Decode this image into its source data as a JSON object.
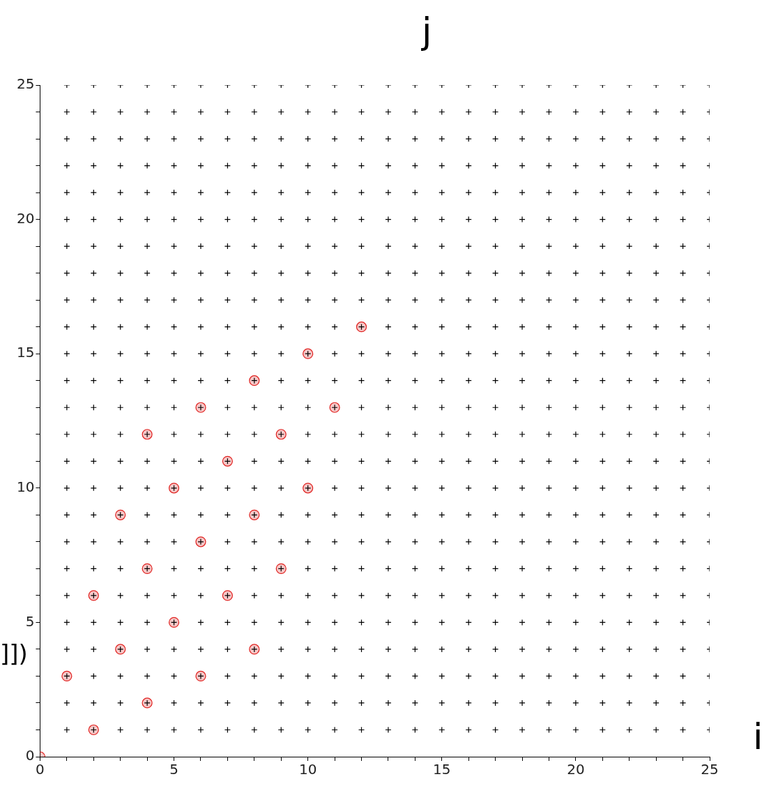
{
  "chart_data": {
    "type": "scatter",
    "xlabel": "i",
    "ylabel": "j",
    "annotations": [
      "]])"
    ],
    "xlim": [
      0,
      25
    ],
    "ylim": [
      0,
      25
    ],
    "xticks": [
      0,
      {
        "value": 1,
        "label": null
      },
      {
        "value": 2,
        "label": null
      },
      {
        "value": 3,
        "label": null
      },
      {
        "value": 4,
        "label": null
      },
      5,
      {
        "value": 6,
        "label": null
      },
      {
        "value": 7,
        "label": null
      },
      {
        "value": 8,
        "label": null
      },
      {
        "value": 9,
        "label": null
      },
      10,
      {
        "value": 11,
        "label": null
      },
      {
        "value": 12,
        "label": null
      },
      {
        "value": 13,
        "label": null
      },
      {
        "value": 14,
        "label": null
      },
      15,
      {
        "value": 16,
        "label": null
      },
      {
        "value": 17,
        "label": null
      },
      {
        "value": 18,
        "label": null
      },
      {
        "value": 19,
        "label": null
      },
      20,
      {
        "value": 21,
        "label": null
      },
      {
        "value": 22,
        "label": null
      },
      {
        "value": 23,
        "label": null
      },
      {
        "value": 24,
        "label": null
      },
      25
    ],
    "yticks": [
      0,
      {
        "value": 1,
        "label": null
      },
      {
        "value": 2,
        "label": null
      },
      {
        "value": 3,
        "label": null
      },
      {
        "value": 4,
        "label": null
      },
      5,
      {
        "value": 6,
        "label": null
      },
      {
        "value": 7,
        "label": null
      },
      {
        "value": 8,
        "label": null
      },
      {
        "value": 9,
        "label": null
      },
      10,
      {
        "value": 11,
        "label": null
      },
      {
        "value": 12,
        "label": null
      },
      {
        "value": 13,
        "label": null
      },
      {
        "value": 14,
        "label": null
      },
      15,
      {
        "value": 16,
        "label": null
      },
      {
        "value": 17,
        "label": null
      },
      {
        "value": 18,
        "label": null
      },
      {
        "value": 19,
        "label": null
      },
      20,
      {
        "value": 21,
        "label": null
      },
      {
        "value": 22,
        "label": null
      },
      {
        "value": 23,
        "label": null
      },
      {
        "value": 24,
        "label": null
      },
      25
    ],
    "series": [
      {
        "color": "#000000",
        "marker": "cross",
        "x": [
          1,
          2,
          3,
          4,
          5,
          6,
          7,
          8,
          9,
          10,
          11,
          12,
          13,
          14,
          15,
          16,
          17,
          18,
          19,
          20,
          21,
          22,
          23,
          24,
          25,
          1,
          2,
          3,
          4,
          5,
          6,
          7,
          8,
          9,
          10,
          11,
          12,
          13,
          14,
          15,
          16,
          17,
          18,
          19,
          20,
          21,
          22,
          23,
          24,
          25,
          1,
          2,
          3,
          4,
          5,
          6,
          7,
          8,
          9,
          10,
          11,
          12,
          13,
          14,
          15,
          16,
          17,
          18,
          19,
          20,
          21,
          22,
          23,
          24,
          25,
          1,
          2,
          3,
          4,
          5,
          6,
          7,
          8,
          9,
          10,
          11,
          12,
          13,
          14,
          15,
          16,
          17,
          18,
          19,
          20,
          21,
          22,
          23,
          24,
          25,
          1,
          2,
          3,
          4,
          5,
          6,
          7,
          8,
          9,
          10,
          11,
          12,
          13,
          14,
          15,
          16,
          17,
          18,
          19,
          20,
          21,
          22,
          23,
          24,
          25,
          1,
          2,
          3,
          4,
          5,
          6,
          7,
          8,
          9,
          10,
          11,
          12,
          13,
          14,
          15,
          16,
          17,
          18,
          19,
          20,
          21,
          22,
          23,
          24,
          25,
          1,
          2,
          3,
          4,
          5,
          6,
          7,
          8,
          9,
          10,
          11,
          12,
          13,
          14,
          15,
          16,
          17,
          18,
          19,
          20,
          21,
          22,
          23,
          24,
          25,
          1,
          2,
          3,
          4,
          5,
          6,
          7,
          8,
          9,
          10,
          11,
          12,
          13,
          14,
          15,
          16,
          17,
          18,
          19,
          20,
          21,
          22,
          23,
          24,
          25,
          1,
          2,
          3,
          4,
          5,
          6,
          7,
          8,
          9,
          10,
          11,
          12,
          13,
          14,
          15,
          16,
          17,
          18,
          19,
          20,
          21,
          22,
          23,
          24,
          25,
          1,
          2,
          3,
          4,
          5,
          6,
          7,
          8,
          9,
          10,
          11,
          12,
          13,
          14,
          15,
          16,
          17,
          18,
          19,
          20,
          21,
          22,
          23,
          24,
          25,
          1,
          2,
          3,
          4,
          5,
          6,
          7,
          8,
          9,
          10,
          11,
          12,
          13,
          14,
          15,
          16,
          17,
          18,
          19,
          20,
          21,
          22,
          23,
          24,
          25,
          1,
          2,
          3,
          4,
          5,
          6,
          7,
          8,
          9,
          10,
          11,
          12,
          13,
          14,
          15,
          16,
          17,
          18,
          19,
          20,
          21,
          22,
          23,
          24,
          25,
          1,
          2,
          3,
          4,
          5,
          6,
          7,
          8,
          9,
          10,
          11,
          12,
          13,
          14,
          15,
          16,
          17,
          18,
          19,
          20,
          21,
          22,
          23,
          24,
          25,
          1,
          2,
          3,
          4,
          5,
          6,
          7,
          8,
          9,
          10,
          11,
          12,
          13,
          14,
          15,
          16,
          17,
          18,
          19,
          20,
          21,
          22,
          23,
          24,
          25,
          1,
          2,
          3,
          4,
          5,
          6,
          7,
          8,
          9,
          10,
          11,
          12,
          13,
          14,
          15,
          16,
          17,
          18,
          19,
          20,
          21,
          22,
          23,
          24,
          25,
          1,
          2,
          3,
          4,
          5,
          6,
          7,
          8,
          9,
          10,
          11,
          12,
          13,
          14,
          15,
          16,
          17,
          18,
          19,
          20,
          21,
          22,
          23,
          24,
          25,
          1,
          2,
          3,
          4,
          5,
          6,
          7,
          8,
          9,
          10,
          11,
          12,
          13,
          14,
          15,
          16,
          17,
          18,
          19,
          20,
          21,
          22,
          23,
          24,
          25,
          1,
          2,
          3,
          4,
          5,
          6,
          7,
          8,
          9,
          10,
          11,
          12,
          13,
          14,
          15,
          16,
          17,
          18,
          19,
          20,
          21,
          22,
          23,
          24,
          25,
          1,
          2,
          3,
          4,
          5,
          6,
          7,
          8,
          9,
          10,
          11,
          12,
          13,
          14,
          15,
          16,
          17,
          18,
          19,
          20,
          21,
          22,
          23,
          24,
          25,
          1,
          2,
          3,
          4,
          5,
          6,
          7,
          8,
          9,
          10,
          11,
          12,
          13,
          14,
          15,
          16,
          17,
          18,
          19,
          20,
          21,
          22,
          23,
          24,
          25,
          1,
          2,
          3,
          4,
          5,
          6,
          7,
          8,
          9,
          10,
          11,
          12,
          13,
          14,
          15,
          16,
          17,
          18,
          19,
          20,
          21,
          22,
          23,
          24,
          25,
          1,
          2,
          3,
          4,
          5,
          6,
          7,
          8,
          9,
          10,
          11,
          12,
          13,
          14,
          15,
          16,
          17,
          18,
          19,
          20,
          21,
          22,
          23,
          24,
          25,
          1,
          2,
          3,
          4,
          5,
          6,
          7,
          8,
          9,
          10,
          11,
          12,
          13,
          14,
          15,
          16,
          17,
          18,
          19,
          20,
          21,
          22,
          23,
          24,
          25,
          1,
          2,
          3,
          4,
          5,
          6,
          7,
          8,
          9,
          10,
          11,
          12,
          13,
          14,
          15,
          16,
          17,
          18,
          19,
          20,
          21,
          22,
          23,
          24,
          25,
          1,
          2,
          3,
          4,
          5,
          6,
          7,
          8,
          9,
          10,
          11,
          12,
          13,
          14,
          15,
          16,
          17,
          18,
          19,
          20,
          21,
          22,
          23,
          24,
          25
        ],
        "values": [
          1,
          1,
          1,
          1,
          1,
          1,
          1,
          1,
          1,
          1,
          1,
          1,
          1,
          1,
          1,
          1,
          1,
          1,
          1,
          1,
          1,
          1,
          1,
          1,
          1,
          2,
          2,
          2,
          2,
          2,
          2,
          2,
          2,
          2,
          2,
          2,
          2,
          2,
          2,
          2,
          2,
          2,
          2,
          2,
          2,
          2,
          2,
          2,
          2,
          2,
          3,
          3,
          3,
          3,
          3,
          3,
          3,
          3,
          3,
          3,
          3,
          3,
          3,
          3,
          3,
          3,
          3,
          3,
          3,
          3,
          3,
          3,
          3,
          3,
          3,
          4,
          4,
          4,
          4,
          4,
          4,
          4,
          4,
          4,
          4,
          4,
          4,
          4,
          4,
          4,
          4,
          4,
          4,
          4,
          4,
          4,
          4,
          4,
          4,
          4,
          5,
          5,
          5,
          5,
          5,
          5,
          5,
          5,
          5,
          5,
          5,
          5,
          5,
          5,
          5,
          5,
          5,
          5,
          5,
          5,
          5,
          5,
          5,
          5,
          5,
          6,
          6,
          6,
          6,
          6,
          6,
          6,
          6,
          6,
          6,
          6,
          6,
          6,
          6,
          6,
          6,
          6,
          6,
          6,
          6,
          6,
          6,
          6,
          6,
          6,
          7,
          7,
          7,
          7,
          7,
          7,
          7,
          7,
          7,
          7,
          7,
          7,
          7,
          7,
          7,
          7,
          7,
          7,
          7,
          7,
          7,
          7,
          7,
          7,
          7,
          8,
          8,
          8,
          8,
          8,
          8,
          8,
          8,
          8,
          8,
          8,
          8,
          8,
          8,
          8,
          8,
          8,
          8,
          8,
          8,
          8,
          8,
          8,
          8,
          8,
          9,
          9,
          9,
          9,
          9,
          9,
          9,
          9,
          9,
          9,
          9,
          9,
          9,
          9,
          9,
          9,
          9,
          9,
          9,
          9,
          9,
          9,
          9,
          9,
          9,
          10,
          10,
          10,
          10,
          10,
          10,
          10,
          10,
          10,
          10,
          10,
          10,
          10,
          10,
          10,
          10,
          10,
          10,
          10,
          10,
          10,
          10,
          10,
          10,
          10,
          11,
          11,
          11,
          11,
          11,
          11,
          11,
          11,
          11,
          11,
          11,
          11,
          11,
          11,
          11,
          11,
          11,
          11,
          11,
          11,
          11,
          11,
          11,
          11,
          11,
          12,
          12,
          12,
          12,
          12,
          12,
          12,
          12,
          12,
          12,
          12,
          12,
          12,
          12,
          12,
          12,
          12,
          12,
          12,
          12,
          12,
          12,
          12,
          12,
          12,
          13,
          13,
          13,
          13,
          13,
          13,
          13,
          13,
          13,
          13,
          13,
          13,
          13,
          13,
          13,
          13,
          13,
          13,
          13,
          13,
          13,
          13,
          13,
          13,
          13,
          14,
          14,
          14,
          14,
          14,
          14,
          14,
          14,
          14,
          14,
          14,
          14,
          14,
          14,
          14,
          14,
          14,
          14,
          14,
          14,
          14,
          14,
          14,
          14,
          14,
          15,
          15,
          15,
          15,
          15,
          15,
          15,
          15,
          15,
          15,
          15,
          15,
          15,
          15,
          15,
          15,
          15,
          15,
          15,
          15,
          15,
          15,
          15,
          15,
          15,
          16,
          16,
          16,
          16,
          16,
          16,
          16,
          16,
          16,
          16,
          16,
          16,
          16,
          16,
          16,
          16,
          16,
          16,
          16,
          16,
          16,
          16,
          16,
          16,
          16,
          17,
          17,
          17,
          17,
          17,
          17,
          17,
          17,
          17,
          17,
          17,
          17,
          17,
          17,
          17,
          17,
          17,
          17,
          17,
          17,
          17,
          17,
          17,
          17,
          17,
          18,
          18,
          18,
          18,
          18,
          18,
          18,
          18,
          18,
          18,
          18,
          18,
          18,
          18,
          18,
          18,
          18,
          18,
          18,
          18,
          18,
          18,
          18,
          18,
          18,
          19,
          19,
          19,
          19,
          19,
          19,
          19,
          19,
          19,
          19,
          19,
          19,
          19,
          19,
          19,
          19,
          19,
          19,
          19,
          19,
          19,
          19,
          19,
          19,
          19,
          20,
          20,
          20,
          20,
          20,
          20,
          20,
          20,
          20,
          20,
          20,
          20,
          20,
          20,
          20,
          20,
          20,
          20,
          20,
          20,
          20,
          20,
          20,
          20,
          20,
          21,
          21,
          21,
          21,
          21,
          21,
          21,
          21,
          21,
          21,
          21,
          21,
          21,
          21,
          21,
          21,
          21,
          21,
          21,
          21,
          21,
          21,
          21,
          21,
          21,
          22,
          22,
          22,
          22,
          22,
          22,
          22,
          22,
          22,
          22,
          22,
          22,
          22,
          22,
          22,
          22,
          22,
          22,
          22,
          22,
          22,
          22,
          22,
          22,
          22,
          23,
          23,
          23,
          23,
          23,
          23,
          23,
          23,
          23,
          23,
          23,
          23,
          23,
          23,
          23,
          23,
          23,
          23,
          23,
          23,
          23,
          23,
          23,
          23,
          23,
          24,
          24,
          24,
          24,
          24,
          24,
          24,
          24,
          24,
          24,
          24,
          24,
          24,
          24,
          24,
          24,
          24,
          24,
          24,
          24,
          24,
          24,
          24,
          24,
          24,
          25,
          25,
          25,
          25,
          25,
          25,
          25,
          25,
          25,
          25,
          25,
          25,
          25,
          25,
          25,
          25,
          25,
          25,
          25,
          25,
          25,
          25,
          25,
          25,
          25
        ]
      },
      {
        "color": "#e0201e",
        "marker": "circle",
        "x": [
          0,
          2,
          1,
          4,
          6,
          3,
          8,
          5,
          2,
          7,
          4,
          9,
          6,
          3,
          8,
          5,
          10,
          7,
          4,
          9,
          6,
          11,
          8,
          10,
          12
        ],
        "values": [
          0,
          1,
          3,
          2,
          3,
          4,
          4,
          5,
          6,
          6,
          7,
          7,
          8,
          9,
          9,
          10,
          10,
          11,
          12,
          12,
          13,
          13,
          14,
          15,
          16
        ]
      }
    ]
  }
}
